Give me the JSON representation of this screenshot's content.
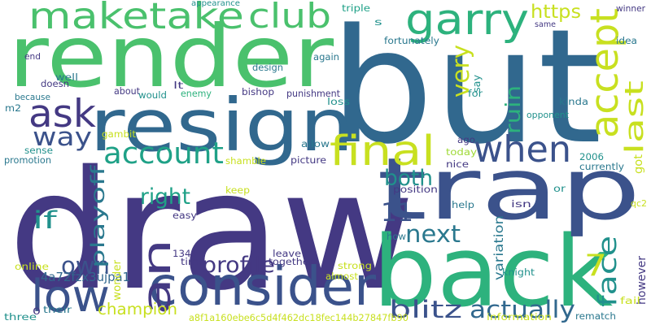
{
  "palette": {
    "dark_purple": "#443983",
    "indigo": "#3b528b",
    "steel_blue": "#31688e",
    "teal_blue": "#2a788e",
    "teal": "#21918c",
    "sea_green": "#1fa187",
    "green": "#2db27d",
    "light_green": "#4ac16d",
    "lime": "#a0da39",
    "yellow": "#c8e020"
  },
  "words": [
    {
      "text": "draw",
      "color": "dark_purple",
      "vertical": false
    },
    {
      "text": "but",
      "color": "steel_blue",
      "vertical": false
    },
    {
      "text": "render",
      "color": "light_green",
      "vertical": false
    },
    {
      "text": "back",
      "color": "green",
      "vertical": false
    },
    {
      "text": "resign",
      "color": "steel_blue",
      "vertical": false
    },
    {
      "text": "trap",
      "color": "indigo",
      "vertical": false
    },
    {
      "text": "consider",
      "color": "indigo",
      "vertical": false
    },
    {
      "text": "an",
      "color": "dark_purple",
      "vertical": true
    },
    {
      "text": "garry",
      "color": "green",
      "vertical": false
    },
    {
      "text": "maketake",
      "color": "light_green",
      "vertical": false
    },
    {
      "text": "club",
      "color": "light_green",
      "vertical": false
    },
    {
      "text": "accept",
      "color": "yellow",
      "vertical": true
    },
    {
      "text": "when",
      "color": "indigo",
      "vertical": false
    },
    {
      "text": "final",
      "color": "yellow",
      "vertical": false
    },
    {
      "text": "ask",
      "color": "dark_purple",
      "vertical": false
    },
    {
      "text": "low",
      "color": "indigo",
      "vertical": false
    },
    {
      "text": "face",
      "color": "teal",
      "vertical": true
    },
    {
      "text": "last",
      "color": "yellow",
      "vertical": true
    },
    {
      "text": "account",
      "color": "sea_green",
      "vertical": false
    },
    {
      "text": "11",
      "color": "indigo",
      "vertical": false
    },
    {
      "text": "7",
      "color": "yellow",
      "vertical": false
    },
    {
      "text": "own",
      "color": "indigo",
      "vertical": false
    },
    {
      "text": "very",
      "color": "yellow",
      "vertical": true
    },
    {
      "text": "way",
      "color": "indigo",
      "vertical": false
    },
    {
      "text": "playoff",
      "color": "teal_blue",
      "vertical": true
    },
    {
      "text": "ruin",
      "color": "green",
      "vertical": true
    },
    {
      "text": "blitz",
      "color": "indigo",
      "vertical": false
    },
    {
      "text": "profile",
      "color": "dark_purple",
      "vertical": false
    },
    {
      "text": "next",
      "color": "teal_blue",
      "vertical": false
    },
    {
      "text": "actually",
      "color": "steel_blue",
      "vertical": false
    },
    {
      "text": "champion",
      "color": "yellow",
      "vertical": false
    },
    {
      "text": "right",
      "color": "sea_green",
      "vertical": false
    },
    {
      "text": "if",
      "color": "teal",
      "vertical": false
    },
    {
      "text": "both",
      "color": "teal",
      "vertical": false
    },
    {
      "text": "https",
      "color": "yellow",
      "vertical": false
    },
    {
      "text": "4a72fzx3ujpa1",
      "color": "steel_blue",
      "vertical": false
    },
    {
      "text": "a8f1a160ebe6c5d4f462dc18fec144b27847fb90",
      "color": "yellow",
      "vertical": false
    },
    {
      "text": "appearance",
      "color": "teal",
      "vertical": false
    },
    {
      "text": "triple",
      "color": "sea_green",
      "vertical": false
    },
    {
      "text": "s",
      "color": "teal",
      "vertical": false
    },
    {
      "text": "winner",
      "color": "dark_purple",
      "vertical": false
    },
    {
      "text": "fortunately",
      "color": "teal_blue",
      "vertical": false
    },
    {
      "text": "same",
      "color": "dark_purple",
      "vertical": false
    },
    {
      "text": "idea",
      "color": "teal_blue",
      "vertical": false
    },
    {
      "text": "end",
      "color": "dark_purple",
      "vertical": false
    },
    {
      "text": "again",
      "color": "teal_blue",
      "vertical": false
    },
    {
      "text": "well",
      "color": "teal_blue",
      "vertical": false
    },
    {
      "text": "doesn",
      "color": "dark_purple",
      "vertical": false
    },
    {
      "text": "design",
      "color": "teal_blue",
      "vertical": false
    },
    {
      "text": "say",
      "color": "teal",
      "vertical": true
    },
    {
      "text": "lt",
      "color": "dark_purple",
      "vertical": false
    },
    {
      "text": "for",
      "color": "teal",
      "vertical": false
    },
    {
      "text": "because",
      "color": "teal_blue",
      "vertical": false
    },
    {
      "text": "about",
      "color": "dark_purple",
      "vertical": false
    },
    {
      "text": "would",
      "color": "teal",
      "vertical": false
    },
    {
      "text": "enemy",
      "color": "green",
      "vertical": false
    },
    {
      "text": "bishop",
      "color": "dark_purple",
      "vertical": false
    },
    {
      "text": "punishment",
      "color": "dark_purple",
      "vertical": false
    },
    {
      "text": "loss",
      "color": "teal",
      "vertical": false
    },
    {
      "text": "kinda",
      "color": "teal_blue",
      "vertical": false
    },
    {
      "text": "m2",
      "color": "teal_blue",
      "vertical": false
    },
    {
      "text": "gambit",
      "color": "yellow",
      "vertical": false
    },
    {
      "text": "sense",
      "color": "teal",
      "vertical": false
    },
    {
      "text": "promotion",
      "color": "teal_blue",
      "vertical": false
    },
    {
      "text": "ago",
      "color": "dark_purple",
      "vertical": false
    },
    {
      "text": "opponent",
      "color": "teal",
      "vertical": false
    },
    {
      "text": "allow",
      "color": "teal_blue",
      "vertical": false
    },
    {
      "text": "today",
      "color": "lime",
      "vertical": false
    },
    {
      "text": "2006",
      "color": "teal",
      "vertical": false
    },
    {
      "text": "shamble",
      "color": "yellow",
      "vertical": false
    },
    {
      "text": "picture",
      "color": "dark_purple",
      "vertical": false
    },
    {
      "text": "got",
      "color": "yellow",
      "vertical": true
    },
    {
      "text": "currently",
      "color": "teal_blue",
      "vertical": false
    },
    {
      "text": "nice",
      "color": "dark_purple",
      "vertical": false
    },
    {
      "text": "position",
      "color": "dark_purple",
      "vertical": false
    },
    {
      "text": "or",
      "color": "teal",
      "vertical": false
    },
    {
      "text": "keep",
      "color": "yellow",
      "vertical": false
    },
    {
      "text": "help",
      "color": "teal_blue",
      "vertical": false
    },
    {
      "text": "isn",
      "color": "dark_purple",
      "vertical": false
    },
    {
      "text": "easy",
      "color": "dark_purple",
      "vertical": false
    },
    {
      "text": "qc2",
      "color": "yellow",
      "vertical": false
    },
    {
      "text": "variation",
      "color": "teal_blue",
      "vertical": true
    },
    {
      "text": "how",
      "color": "teal_blue",
      "vertical": false
    },
    {
      "text": "1349",
      "color": "dark_purple",
      "vertical": false
    },
    {
      "text": "time",
      "color": "dark_purple",
      "vertical": false
    },
    {
      "text": "leave",
      "color": "dark_purple",
      "vertical": false
    },
    {
      "text": "together",
      "color": "dark_purple",
      "vertical": false
    },
    {
      "text": "online",
      "color": "yellow",
      "vertical": false
    },
    {
      "text": "strong",
      "color": "yellow",
      "vertical": false
    },
    {
      "text": "knight",
      "color": "teal",
      "vertical": false
    },
    {
      "text": "however",
      "color": "dark_purple",
      "vertical": true
    },
    {
      "text": "wonder",
      "color": "yellow",
      "vertical": true
    },
    {
      "text": "almost",
      "color": "yellow",
      "vertical": false
    },
    {
      "text": "fail",
      "color": "yellow",
      "vertical": false
    },
    {
      "text": "three",
      "color": "teal",
      "vertical": false
    },
    {
      "text": "0",
      "color": "dark_purple",
      "vertical": false
    },
    {
      "text": "their",
      "color": "teal_blue",
      "vertical": false
    },
    {
      "text": "information",
      "color": "yellow",
      "vertical": false
    },
    {
      "text": "rematch",
      "color": "teal_blue",
      "vertical": false
    }
  ]
}
